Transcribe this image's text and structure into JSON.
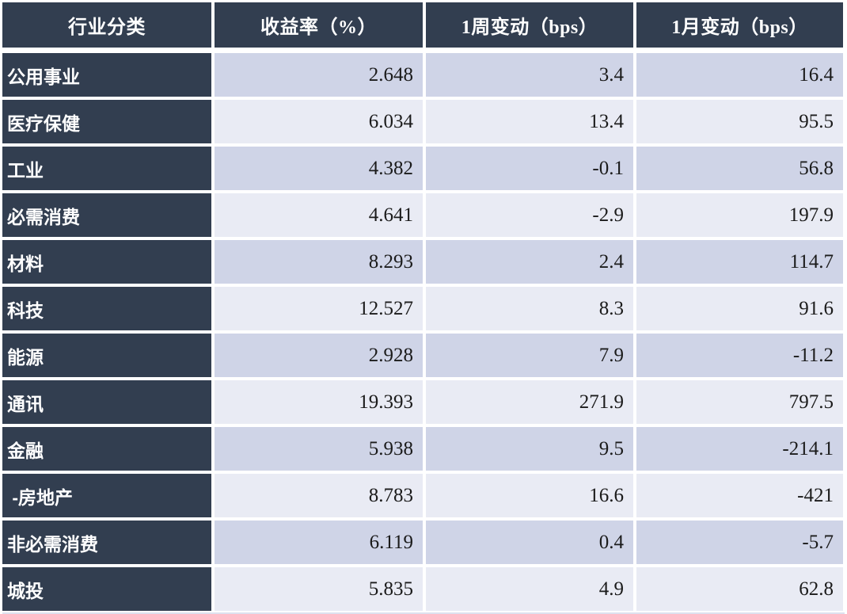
{
  "table": {
    "columns": [
      "行业分类",
      "收益率（%）",
      "1周变动（bps）",
      "1月变动（bps）"
    ],
    "rows": [
      {
        "label": "公用事业",
        "yield": "2.648",
        "week": "3.4",
        "month": "16.4"
      },
      {
        "label": "医疗保健",
        "yield": "6.034",
        "week": "13.4",
        "month": "95.5"
      },
      {
        "label": "工业",
        "yield": "4.382",
        "week": "-0.1",
        "month": "56.8"
      },
      {
        "label": "必需消费",
        "yield": "4.641",
        "week": "-2.9",
        "month": "197.9"
      },
      {
        "label": "材料",
        "yield": "8.293",
        "week": "2.4",
        "month": "114.7"
      },
      {
        "label": "科技",
        "yield": "12.527",
        "week": "8.3",
        "month": "91.6"
      },
      {
        "label": "能源",
        "yield": "2.928",
        "week": "7.9",
        "month": "-11.2"
      },
      {
        "label": "通讯",
        "yield": "19.393",
        "week": "271.9",
        "month": "797.5"
      },
      {
        "label": "金融",
        "yield": "5.938",
        "week": "9.5",
        "month": "-214.1"
      },
      {
        "label": " -房地产",
        "yield": "8.783",
        "week": "16.6",
        "month": "-421"
      },
      {
        "label": "非必需消费",
        "yield": "6.119",
        "week": "0.4",
        "month": "-5.7"
      },
      {
        "label": "城投",
        "yield": "5.835",
        "week": "4.9",
        "month": "62.8"
      }
    ]
  },
  "colors": {
    "header_bg": "#323e50",
    "row_dark": "#cfd4e7",
    "row_light": "#e9ebf4",
    "grid_line": "#ffffff",
    "number_text": "#1b1b1b",
    "header_text": "#ffffff"
  },
  "chart_data": {
    "type": "table",
    "title": "",
    "columns": [
      "行业分类",
      "收益率（%）",
      "1周变动（bps）",
      "1月变动（bps）"
    ],
    "rows": [
      [
        "公用事业",
        2.648,
        3.4,
        16.4
      ],
      [
        "医疗保健",
        6.034,
        13.4,
        95.5
      ],
      [
        "工业",
        4.382,
        -0.1,
        56.8
      ],
      [
        "必需消费",
        4.641,
        -2.9,
        197.9
      ],
      [
        "材料",
        8.293,
        2.4,
        114.7
      ],
      [
        "科技",
        12.527,
        8.3,
        91.6
      ],
      [
        "能源",
        2.928,
        7.9,
        -11.2
      ],
      [
        "通讯",
        19.393,
        271.9,
        797.5
      ],
      [
        "金融",
        5.938,
        9.5,
        -214.1
      ],
      [
        "-房地产",
        8.783,
        16.6,
        -421
      ],
      [
        "非必需消费",
        6.119,
        0.4,
        -5.7
      ],
      [
        "城投",
        5.835,
        4.9,
        62.8
      ]
    ]
  }
}
